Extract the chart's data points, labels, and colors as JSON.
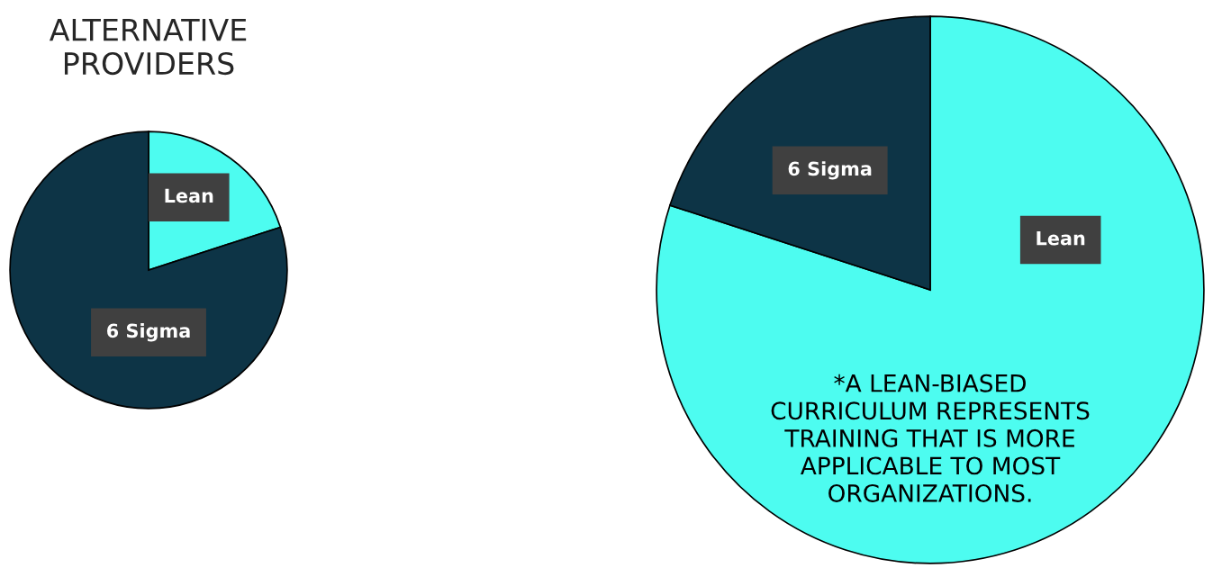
{
  "chart_data": [
    {
      "type": "pie",
      "title": "ALTERNATIVE\nPROVIDERS",
      "categories": [
        "Lean",
        "6 Sigma"
      ],
      "values": [
        20,
        80
      ],
      "colors": [
        "#4dfcf0",
        "#0d3446"
      ]
    },
    {
      "type": "pie",
      "categories": [
        "Lean",
        "6 Sigma"
      ],
      "values": [
        80,
        20
      ],
      "colors": [
        "#4dfcf0",
        "#0d3446"
      ],
      "annotations": [
        "*A LEAN-BIASED\nCURRICULUM REPRESENTS\nTRAINING THAT IS MORE\nAPPLICABLE TO MOST\nORGANIZATIONS."
      ]
    }
  ]
}
